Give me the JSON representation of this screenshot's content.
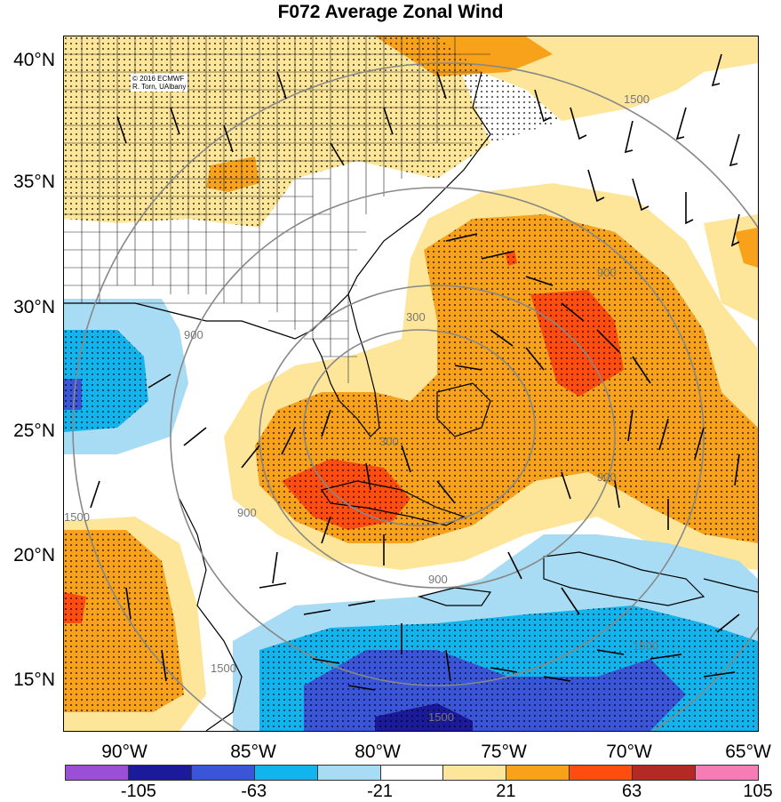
{
  "title": "F072 Average Zonal Wind",
  "credit": {
    "line1": "© 2016 ECMWF",
    "line2": "R. Torn, UAlbany"
  },
  "lat_labels": [
    "40°N",
    "35°N",
    "30°N",
    "25°N",
    "20°N",
    "15°N"
  ],
  "lon_labels": [
    "90°W",
    "85°W",
    "80°W",
    "75°W",
    "70°W",
    "65°W"
  ],
  "contour_labels": [
    "1500",
    "300",
    "900",
    "300",
    "900",
    "900",
    "900",
    "900",
    "1500",
    "1500",
    "1500",
    "1500"
  ],
  "colorbar": {
    "colors": [
      "#9b4fd6",
      "#1a1a9a",
      "#3a55d8",
      "#12b4ee",
      "#a8dcf4",
      "#ffffff",
      "#fde699",
      "#f7a21a",
      "#ff4d0f",
      "#b32a24",
      "#f77bb4"
    ],
    "labels": [
      "-105",
      "-63",
      "-21",
      "21",
      "63",
      "105"
    ]
  },
  "colors": {
    "neg_strong": "#12b4ee",
    "neg_light": "#a8dcf4",
    "neg_dark": "#3a55d8",
    "neg_darkest": "#1a1a9a",
    "pos_light": "#fde699",
    "pos_mid": "#f7a21a",
    "pos_strong": "#ff4d0f"
  }
}
